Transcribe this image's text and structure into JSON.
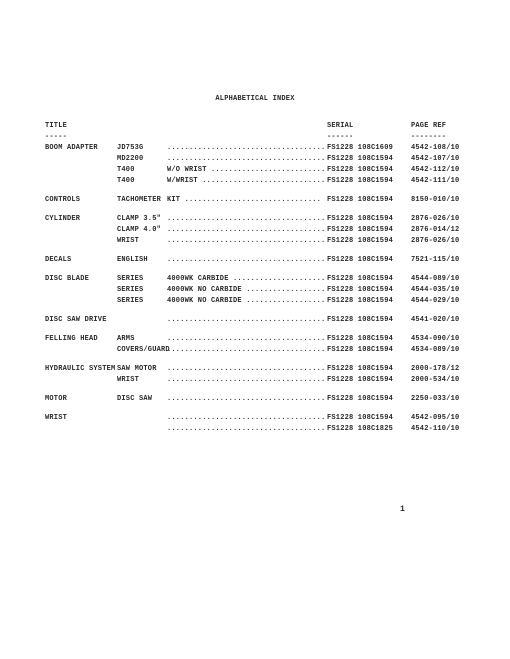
{
  "title": "ALPHABETICAL INDEX",
  "columns": {
    "title": "TITLE",
    "serial": "SERIAL",
    "pageref": "PAGE REF",
    "title_ul": "-----",
    "serial_ul": "------",
    "pageref_ul": "--------"
  },
  "rows": [
    {
      "type": "row",
      "title": "BOOM ADAPTER",
      "sub": "JD753G",
      "mid": "..........................................",
      "serial": "FS1228 108C1609",
      "page": "4542-108/10"
    },
    {
      "type": "row",
      "title": "",
      "sub": "MD2200",
      "mid": "..........................................",
      "serial": "FS1228 108C1594",
      "page": "4542-107/10"
    },
    {
      "type": "row",
      "title": "",
      "sub": "T400",
      "mid": "W/O WRIST  ...............................",
      "serial": "FS1228 108C1594",
      "page": "4542-112/10"
    },
    {
      "type": "row",
      "title": "",
      "sub": "T400",
      "mid": "W/WRIST    ...............................",
      "serial": "FS1228 108C1594",
      "page": "4542-111/10"
    },
    {
      "type": "gap"
    },
    {
      "type": "row",
      "title": "CONTROLS",
      "sub": "TACHOMETER",
      "mid": "KIT        ...............................",
      "serial": "FS1228 108C1594",
      "page": "8150-010/10"
    },
    {
      "type": "gap"
    },
    {
      "type": "row",
      "title": "CYLINDER",
      "sub": "CLAMP 3.5\"",
      "mid": "..........................................",
      "serial": "FS1228 108C1594",
      "page": "2876-026/10"
    },
    {
      "type": "row",
      "title": "",
      "sub": "CLAMP 4.0\"",
      "mid": "..........................................",
      "serial": "FS1228 108C1594",
      "page": "2876-014/12"
    },
    {
      "type": "row",
      "title": "",
      "sub": "WRIST",
      "mid": "..........................................",
      "serial": "FS1228 108C1594",
      "page": "2876-026/10"
    },
    {
      "type": "gap"
    },
    {
      "type": "row",
      "title": "DECALS",
      "sub": "ENGLISH",
      "mid": "..........................................",
      "serial": "FS1228 108C1594",
      "page": "7521-115/10"
    },
    {
      "type": "gap"
    },
    {
      "type": "row",
      "title": "DISC BLADE",
      "sub": "SERIES",
      "mid": "4000WK    CARBIDE    .....................",
      "serial": "FS1228 108C1594",
      "page": "4544-089/10"
    },
    {
      "type": "row",
      "title": "",
      "sub": "SERIES",
      "mid": "4000WK    NO CARBIDE .....................",
      "serial": "FS1228 108C1594",
      "page": "4544-035/10"
    },
    {
      "type": "row",
      "title": "",
      "sub": "SERIES",
      "mid": "4000WK    NO CARBIDE .....................",
      "serial": "FS1228 108C1594",
      "page": "4544-029/10"
    },
    {
      "type": "gap"
    },
    {
      "type": "row",
      "title": "DISC SAW DRIVE",
      "sub": "",
      "mid": "..........................................",
      "serial": "FS1228 108C1594",
      "page": "4541-020/10"
    },
    {
      "type": "gap"
    },
    {
      "type": "row",
      "title": "FELLING HEAD",
      "sub": "ARMS",
      "mid": "..........................................",
      "serial": "FS1228 108C1594",
      "page": "4534-090/10"
    },
    {
      "type": "row",
      "title": "",
      "sub": "COVERS/GUARD",
      "mid": ".......................................",
      "serial": "FS1228 108C1594",
      "page": "4534-089/10"
    },
    {
      "type": "gap"
    },
    {
      "type": "row",
      "title": "HYDRAULIC SYSTEM",
      "sub": "SAW MOTOR",
      "mid": "........................................",
      "serial": "FS1228 108C1594",
      "page": "2000-178/12"
    },
    {
      "type": "row",
      "title": "",
      "sub": "WRIST",
      "mid": "..........................................",
      "serial": "FS1228 108C1594",
      "page": "2000-534/10"
    },
    {
      "type": "gap"
    },
    {
      "type": "row",
      "title": "MOTOR",
      "sub": "DISC SAW",
      "mid": "..........................................",
      "serial": "FS1228 108C1594",
      "page": "2250-033/10"
    },
    {
      "type": "gap"
    },
    {
      "type": "row",
      "title": "WRIST",
      "sub": "",
      "mid": ".................................................",
      "serial": "FS1228 108C1594",
      "page": "4542-095/10"
    },
    {
      "type": "row",
      "title": "",
      "sub": "",
      "mid": ".................................................",
      "serial": "FS1228 108C1825",
      "page": "4542-110/10"
    }
  ],
  "footer": "1"
}
